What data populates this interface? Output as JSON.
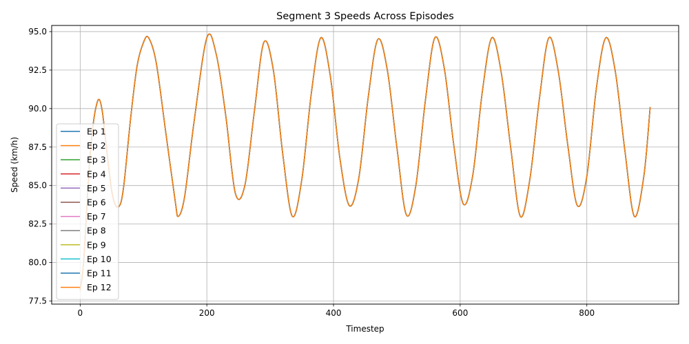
{
  "chart_data": {
    "type": "line",
    "title": "Segment 3 Speeds Across Episodes",
    "xlabel": "Timestep",
    "ylabel": "Speed (km/h)",
    "xlim": [
      -45,
      945
    ],
    "ylim": [
      77.3,
      95.4
    ],
    "xticks": [
      0,
      200,
      400,
      600,
      800
    ],
    "yticks": [
      77.5,
      80.0,
      82.5,
      85.0,
      87.5,
      90.0,
      92.5,
      95.0
    ],
    "grid": true,
    "legend_position": "lower-left",
    "x": [
      0,
      5,
      10,
      15,
      20,
      25,
      30,
      35,
      40,
      45,
      50,
      55,
      60,
      65,
      70,
      80,
      90,
      100,
      108,
      120,
      135,
      150,
      155,
      165,
      180,
      200,
      215,
      230,
      245,
      260,
      275,
      290,
      305,
      320,
      335,
      350,
      365,
      380,
      395,
      410,
      425,
      440,
      455,
      470,
      485,
      500,
      515,
      530,
      545,
      560,
      575,
      590,
      605,
      620,
      635,
      650,
      665,
      680,
      695,
      710,
      725,
      740,
      755,
      770,
      785,
      800,
      815,
      830,
      845,
      860,
      875,
      890,
      900
    ],
    "series": [
      {
        "name": "Ep 1",
        "color": "#1f77b4",
        "values": [
          78.2,
          79.8,
          83.2,
          86.6,
          88.8,
          90.1,
          90.6,
          89.8,
          88.0,
          86.2,
          84.6,
          83.8,
          83.6,
          84.0,
          85.4,
          89.5,
          92.8,
          94.3,
          94.6,
          93.0,
          88.5,
          84.0,
          83.0,
          84.3,
          89.2,
          94.6,
          93.5,
          89.5,
          84.5,
          85.0,
          89.8,
          94.3,
          92.5,
          87.0,
          83.0,
          85.4,
          91.0,
          94.6,
          92.1,
          86.8,
          83.7,
          85.5,
          90.8,
          94.5,
          92.5,
          87.5,
          83.1,
          85.0,
          90.5,
          94.6,
          92.6,
          87.6,
          83.8,
          85.7,
          91.1,
          94.6,
          92.3,
          87.4,
          83.0,
          85.4,
          90.6,
          94.6,
          92.4,
          87.6,
          83.7,
          85.6,
          91.3,
          94.6,
          92.4,
          87.3,
          83.0,
          85.6,
          90.1
        ]
      },
      {
        "name": "Ep 2",
        "color": "#ff7f0e",
        "values": [
          78.2,
          79.8,
          83.2,
          86.6,
          88.8,
          90.1,
          90.6,
          89.8,
          88.0,
          86.2,
          84.6,
          83.8,
          83.6,
          84.0,
          85.4,
          89.5,
          92.8,
          94.3,
          94.6,
          93.0,
          88.5,
          84.0,
          83.0,
          84.3,
          89.2,
          94.6,
          93.5,
          89.5,
          84.5,
          85.0,
          89.8,
          94.3,
          92.5,
          87.0,
          83.0,
          85.4,
          91.0,
          94.6,
          92.1,
          86.8,
          83.7,
          85.5,
          90.8,
          94.5,
          92.5,
          87.5,
          83.1,
          85.0,
          90.5,
          94.6,
          92.6,
          87.6,
          83.8,
          85.7,
          91.1,
          94.6,
          92.3,
          87.4,
          83.0,
          85.4,
          90.6,
          94.6,
          92.4,
          87.6,
          83.7,
          85.6,
          91.3,
          94.6,
          92.4,
          87.3,
          83.0,
          85.6,
          90.1
        ]
      },
      {
        "name": "Ep 3",
        "color": "#2ca02c",
        "values": [
          78.2,
          79.8,
          83.2,
          86.6,
          88.8,
          90.1,
          90.6,
          89.8,
          88.0,
          86.2,
          84.6,
          83.8,
          83.6,
          84.0,
          85.4,
          89.5,
          92.8,
          94.3,
          94.6,
          93.0,
          88.5,
          84.0,
          83.0,
          84.3,
          89.2,
          94.6,
          93.5,
          89.5,
          84.5,
          85.0,
          89.8,
          94.3,
          92.5,
          87.0,
          83.0,
          85.4,
          91.0,
          94.6,
          92.1,
          86.8,
          83.7,
          85.5,
          90.8,
          94.5,
          92.5,
          87.5,
          83.1,
          85.0,
          90.5,
          94.6,
          92.6,
          87.6,
          83.8,
          85.7,
          91.1,
          94.6,
          92.3,
          87.4,
          83.0,
          85.4,
          90.6,
          94.6,
          92.4,
          87.6,
          83.7,
          85.6,
          91.3,
          94.6,
          92.4,
          87.3,
          83.0,
          85.6,
          90.1
        ]
      },
      {
        "name": "Ep 4",
        "color": "#d62728",
        "values": [
          78.2,
          79.8,
          83.2,
          86.6,
          88.8,
          90.1,
          90.6,
          89.8,
          88.0,
          86.2,
          84.6,
          83.8,
          83.6,
          84.0,
          85.4,
          89.5,
          92.8,
          94.3,
          94.6,
          93.0,
          88.5,
          84.0,
          83.0,
          84.3,
          89.2,
          94.6,
          93.5,
          89.5,
          84.5,
          85.0,
          89.8,
          94.3,
          92.5,
          87.0,
          83.0,
          85.4,
          91.0,
          94.6,
          92.1,
          86.8,
          83.7,
          85.5,
          90.8,
          94.5,
          92.5,
          87.5,
          83.1,
          85.0,
          90.5,
          94.6,
          92.6,
          87.6,
          83.8,
          85.7,
          91.1,
          94.6,
          92.3,
          87.4,
          83.0,
          85.4,
          90.6,
          94.6,
          92.4,
          87.6,
          83.7,
          85.6,
          91.3,
          94.6,
          92.4,
          87.3,
          83.0,
          85.6,
          90.1
        ]
      },
      {
        "name": "Ep 5",
        "color": "#9467bd",
        "values": [
          78.2,
          79.8,
          83.2,
          86.6,
          88.8,
          90.1,
          90.6,
          89.8,
          88.0,
          86.2,
          84.6,
          83.8,
          83.6,
          84.0,
          85.4,
          89.5,
          92.8,
          94.3,
          94.6,
          93.0,
          88.5,
          84.0,
          83.0,
          84.3,
          89.2,
          94.6,
          93.5,
          89.5,
          84.5,
          85.0,
          89.8,
          94.3,
          92.5,
          87.0,
          83.0,
          85.4,
          91.0,
          94.6,
          92.1,
          86.8,
          83.7,
          85.5,
          90.8,
          94.5,
          92.5,
          87.5,
          83.1,
          85.0,
          90.5,
          94.6,
          92.6,
          87.6,
          83.8,
          85.7,
          91.1,
          94.6,
          92.3,
          87.4,
          83.0,
          85.4,
          90.6,
          94.6,
          92.4,
          87.6,
          83.7,
          85.6,
          91.3,
          94.6,
          92.4,
          87.3,
          83.0,
          85.6,
          90.1
        ]
      },
      {
        "name": "Ep 6",
        "color": "#8c564b",
        "values": [
          78.2,
          79.8,
          83.2,
          86.6,
          88.8,
          90.1,
          90.6,
          89.8,
          88.0,
          86.2,
          84.6,
          83.8,
          83.6,
          84.0,
          85.4,
          89.5,
          92.8,
          94.3,
          94.6,
          93.0,
          88.5,
          84.0,
          83.0,
          84.3,
          89.2,
          94.6,
          93.5,
          89.5,
          84.5,
          85.0,
          89.8,
          94.3,
          92.5,
          87.0,
          83.0,
          85.4,
          91.0,
          94.6,
          92.1,
          86.8,
          83.7,
          85.5,
          90.8,
          94.5,
          92.5,
          87.5,
          83.1,
          85.0,
          90.5,
          94.6,
          92.6,
          87.6,
          83.8,
          85.7,
          91.1,
          94.6,
          92.3,
          87.4,
          83.0,
          85.4,
          90.6,
          94.6,
          92.4,
          87.6,
          83.7,
          85.6,
          91.3,
          94.6,
          92.4,
          87.3,
          83.0,
          85.6,
          90.1
        ]
      },
      {
        "name": "Ep 7",
        "color": "#e377c2",
        "values": [
          78.2,
          79.8,
          83.2,
          86.6,
          88.8,
          90.1,
          90.6,
          89.8,
          88.0,
          86.2,
          84.6,
          83.8,
          83.6,
          84.0,
          85.4,
          89.5,
          92.8,
          94.3,
          94.6,
          93.0,
          88.5,
          84.0,
          83.0,
          84.3,
          89.2,
          94.6,
          93.5,
          89.5,
          84.5,
          85.0,
          89.8,
          94.3,
          92.5,
          87.0,
          83.0,
          85.4,
          91.0,
          94.6,
          92.1,
          86.8,
          83.7,
          85.5,
          90.8,
          94.5,
          92.5,
          87.5,
          83.1,
          85.0,
          90.5,
          94.6,
          92.6,
          87.6,
          83.8,
          85.7,
          91.1,
          94.6,
          92.3,
          87.4,
          83.0,
          85.4,
          90.6,
          94.6,
          92.4,
          87.6,
          83.7,
          85.6,
          91.3,
          94.6,
          92.4,
          87.3,
          83.0,
          85.6,
          90.1
        ]
      },
      {
        "name": "Ep 8",
        "color": "#7f7f7f",
        "values": [
          78.2,
          79.8,
          83.2,
          86.6,
          88.8,
          90.1,
          90.6,
          89.8,
          88.0,
          86.2,
          84.6,
          83.8,
          83.6,
          84.0,
          85.4,
          89.5,
          92.8,
          94.3,
          94.6,
          93.0,
          88.5,
          84.0,
          83.0,
          84.3,
          89.2,
          94.6,
          93.5,
          89.5,
          84.5,
          85.0,
          89.8,
          94.3,
          92.5,
          87.0,
          83.0,
          85.4,
          91.0,
          94.6,
          92.1,
          86.8,
          83.7,
          85.5,
          90.8,
          94.5,
          92.5,
          87.5,
          83.1,
          85.0,
          90.5,
          94.6,
          92.6,
          87.6,
          83.8,
          85.7,
          91.1,
          94.6,
          92.3,
          87.4,
          83.0,
          85.4,
          90.6,
          94.6,
          92.4,
          87.6,
          83.7,
          85.6,
          91.3,
          94.6,
          92.4,
          87.3,
          83.0,
          85.6,
          90.1
        ]
      },
      {
        "name": "Ep 9",
        "color": "#bcbd22",
        "values": [
          78.2,
          79.8,
          83.2,
          86.6,
          88.8,
          90.1,
          90.6,
          89.8,
          88.0,
          86.2,
          84.6,
          83.8,
          83.6,
          84.0,
          85.4,
          89.5,
          92.8,
          94.3,
          94.6,
          93.0,
          88.5,
          84.0,
          83.0,
          84.3,
          89.2,
          94.6,
          93.5,
          89.5,
          84.5,
          85.0,
          89.8,
          94.3,
          92.5,
          87.0,
          83.0,
          85.4,
          91.0,
          94.6,
          92.1,
          86.8,
          83.7,
          85.5,
          90.8,
          94.5,
          92.5,
          87.5,
          83.1,
          85.0,
          90.5,
          94.6,
          92.6,
          87.6,
          83.8,
          85.7,
          91.1,
          94.6,
          92.3,
          87.4,
          83.0,
          85.4,
          90.6,
          94.6,
          92.4,
          87.6,
          83.7,
          85.6,
          91.3,
          94.6,
          92.4,
          87.3,
          83.0,
          85.6,
          90.1
        ]
      },
      {
        "name": "Ep 10",
        "color": "#17becf",
        "values": [
          78.2,
          79.8,
          83.2,
          86.6,
          88.8,
          90.1,
          90.6,
          89.8,
          88.0,
          86.2,
          84.6,
          83.8,
          83.6,
          84.0,
          85.4,
          89.5,
          92.8,
          94.3,
          94.6,
          93.0,
          88.5,
          84.0,
          83.0,
          84.3,
          89.2,
          94.6,
          93.5,
          89.5,
          84.5,
          85.0,
          89.8,
          94.3,
          92.5,
          87.0,
          83.0,
          85.4,
          91.0,
          94.6,
          92.1,
          86.8,
          83.7,
          85.5,
          90.8,
          94.5,
          92.5,
          87.5,
          83.1,
          85.0,
          90.5,
          94.6,
          92.6,
          87.6,
          83.8,
          85.7,
          91.1,
          94.6,
          92.3,
          87.4,
          83.0,
          85.4,
          90.6,
          94.6,
          92.4,
          87.6,
          83.7,
          85.6,
          91.3,
          94.6,
          92.4,
          87.3,
          83.0,
          85.6,
          90.1
        ]
      },
      {
        "name": "Ep 11",
        "color": "#1f77b4",
        "values": [
          78.2,
          79.8,
          83.2,
          86.6,
          88.8,
          90.1,
          90.6,
          89.8,
          88.0,
          86.2,
          84.6,
          83.8,
          83.6,
          84.0,
          85.4,
          89.5,
          92.8,
          94.3,
          94.6,
          93.0,
          88.5,
          84.0,
          83.0,
          84.3,
          89.2,
          94.6,
          93.5,
          89.5,
          84.5,
          85.0,
          89.8,
          94.3,
          92.5,
          87.0,
          83.0,
          85.4,
          91.0,
          94.6,
          92.1,
          86.8,
          83.7,
          85.5,
          90.8,
          94.5,
          92.5,
          87.5,
          83.1,
          85.0,
          90.5,
          94.6,
          92.6,
          87.6,
          83.8,
          85.7,
          91.1,
          94.6,
          92.3,
          87.4,
          83.0,
          85.4,
          90.6,
          94.6,
          92.4,
          87.6,
          83.7,
          85.6,
          91.3,
          94.6,
          92.4,
          87.3,
          83.0,
          85.6,
          90.1
        ]
      },
      {
        "name": "Ep 12",
        "color": "#ff7f0e",
        "values": [
          78.2,
          79.8,
          83.2,
          86.6,
          88.8,
          90.1,
          90.6,
          89.8,
          88.0,
          86.2,
          84.6,
          83.8,
          83.6,
          84.0,
          85.4,
          89.5,
          92.8,
          94.3,
          94.6,
          93.0,
          88.5,
          84.0,
          83.0,
          84.3,
          89.2,
          94.6,
          93.5,
          89.5,
          84.5,
          85.0,
          89.8,
          94.3,
          92.5,
          87.0,
          83.0,
          85.4,
          91.0,
          94.6,
          92.1,
          86.8,
          83.7,
          85.5,
          90.8,
          94.5,
          92.5,
          87.5,
          83.1,
          85.0,
          90.5,
          94.6,
          92.6,
          87.6,
          83.8,
          85.7,
          91.1,
          94.6,
          92.3,
          87.4,
          83.0,
          85.4,
          90.6,
          94.6,
          92.4,
          87.6,
          83.7,
          85.6,
          91.3,
          94.6,
          92.4,
          87.3,
          83.0,
          85.6,
          90.1
        ]
      }
    ]
  }
}
